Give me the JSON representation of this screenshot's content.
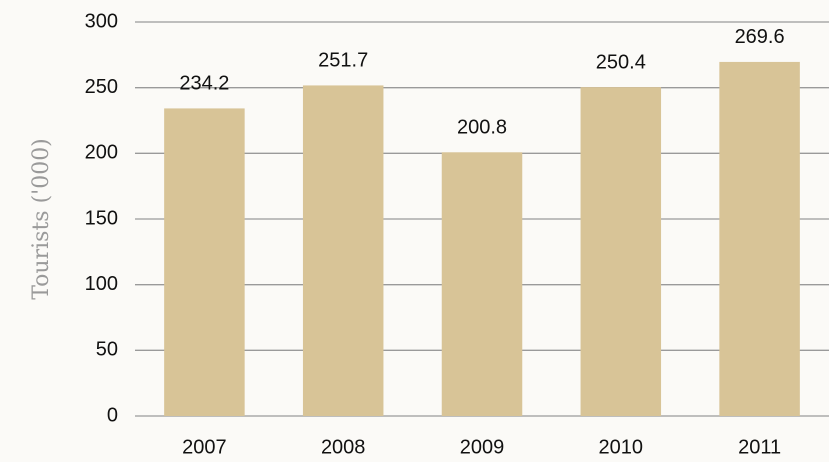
{
  "chart_data": {
    "type": "bar",
    "y_label": "Tourists ('000)",
    "categories": [
      "2007",
      "2008",
      "2009",
      "2010",
      "2011"
    ],
    "values": [
      234.2,
      251.7,
      200.8,
      250.4,
      269.6
    ],
    "color": "#d8c497",
    "ylim": [
      0,
      300
    ],
    "yticks": [
      0,
      50,
      100,
      150,
      200,
      250,
      300
    ],
    "grid": true
  }
}
